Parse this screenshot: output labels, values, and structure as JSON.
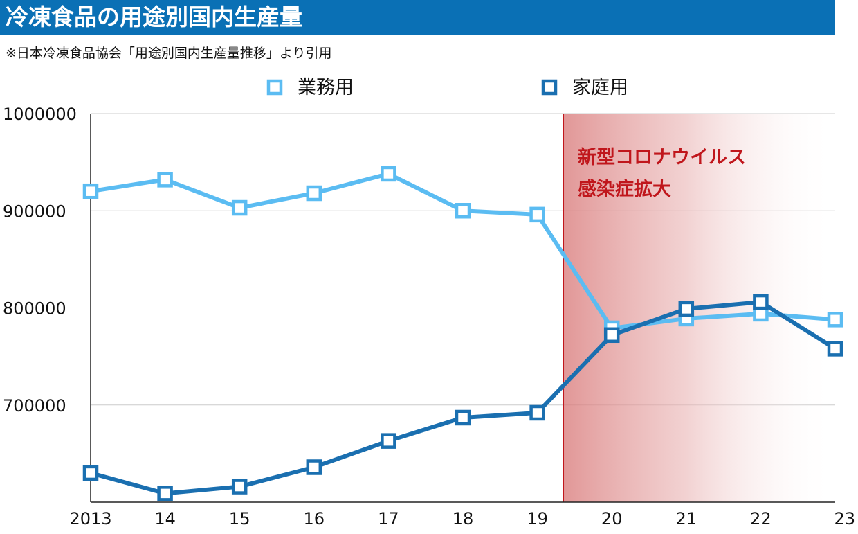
{
  "header": {
    "title": "冷凍食品の用途別国内生産量",
    "source_note": "※日本冷凍食品協会「用途別国内生産量推移」より引用"
  },
  "colors": {
    "title_bar": "#0a70b5",
    "series_business": "#5bbcf2",
    "series_household": "#1a6fb0",
    "covid_band": "#d97a7a",
    "covid_line": "#c0161c",
    "annotation_text": "#c0161c",
    "grid": "#cccccc"
  },
  "chart_data": {
    "type": "line",
    "title": "冷凍食品の用途別国内生産量",
    "xlabel": "",
    "ylabel": "",
    "x": [
      "2013",
      "14",
      "15",
      "16",
      "17",
      "18",
      "19",
      "20",
      "21",
      "22",
      "23"
    ],
    "ylim": [
      600000,
      1000000
    ],
    "yticks": [
      "1000000",
      "900000",
      "800000",
      "700000"
    ],
    "grid": true,
    "legend_placement": "top",
    "series": [
      {
        "name": "業務用",
        "values": [
          920000,
          932000,
          903000,
          918000,
          938000,
          900000,
          896000,
          779000,
          789000,
          794000,
          788000
        ]
      },
      {
        "name": "家庭用",
        "values": [
          630000,
          609000,
          616000,
          636000,
          663000,
          687000,
          692000,
          772000,
          799000,
          806000,
          758000
        ]
      }
    ],
    "annotation": {
      "line1": "新型コロナウイルス",
      "line2": "感染症拡大",
      "start_x": 2019.35
    }
  }
}
